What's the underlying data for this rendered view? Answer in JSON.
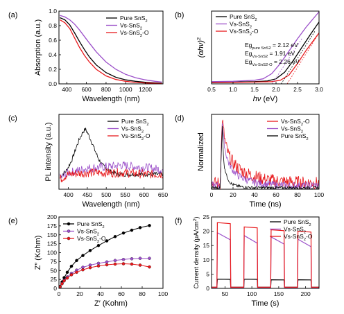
{
  "chart_data": [
    {
      "panel": "(a)",
      "type": "line",
      "xlabel": "Wavelength (nm)",
      "ylabel": "Absorption (a.u.)",
      "xlim": [
        320,
        1380
      ],
      "ylim": [
        0,
        1.0
      ],
      "xticks": [
        400,
        600,
        800,
        1000,
        1200
      ],
      "yticks": [
        0.0,
        0.2,
        0.4,
        0.6,
        0.8,
        1.0
      ],
      "legend_position": "top-right",
      "series": [
        {
          "name": "Pure SnS2",
          "color": "#000000",
          "x": [
            330,
            380,
            430,
            480,
            530,
            580,
            630,
            700,
            800,
            900,
            1000,
            1100,
            1200,
            1300,
            1370
          ],
          "y": [
            0.91,
            0.88,
            0.81,
            0.7,
            0.58,
            0.47,
            0.37,
            0.26,
            0.155,
            0.09,
            0.055,
            0.035,
            0.022,
            0.014,
            0.01
          ]
        },
        {
          "name": "Vs-SnS2",
          "color": "#9b4fc9",
          "x": [
            330,
            380,
            430,
            480,
            530,
            580,
            630,
            700,
            800,
            900,
            1000,
            1100,
            1200,
            1300,
            1370
          ],
          "y": [
            0.94,
            0.92,
            0.88,
            0.82,
            0.74,
            0.65,
            0.56,
            0.44,
            0.3,
            0.2,
            0.13,
            0.085,
            0.055,
            0.035,
            0.025
          ]
        },
        {
          "name": "Vs-SnS2-O",
          "color": "#e8191c",
          "x": [
            330,
            380,
            430,
            480,
            530,
            580,
            630,
            700,
            800,
            900,
            1000,
            1100,
            1200,
            1300,
            1370
          ],
          "y": [
            0.88,
            0.84,
            0.76,
            0.63,
            0.5,
            0.39,
            0.3,
            0.2,
            0.11,
            0.06,
            0.035,
            0.02,
            0.012,
            0.008,
            0.005
          ]
        }
      ]
    },
    {
      "panel": "(b)",
      "type": "line",
      "xlabel": "hν (eV)",
      "ylabel": "(αhν)²",
      "xlim": [
        0.5,
        3.0
      ],
      "ylim": [
        0,
        1.0
      ],
      "xticks": [
        0.5,
        1.0,
        1.5,
        2.0,
        2.5,
        3.0
      ],
      "legend_position": "top-left",
      "annotations": [
        {
          "main": "Eg",
          "sub": "pure SnS2",
          "tail": " = 2.12 eV"
        },
        {
          "main": "Eg",
          "sub": "Vs-SnS2",
          "tail": " = 1.91 eV"
        },
        {
          "main": "Eg",
          "sub": "Vs-SnS2-O",
          "tail": " = 2.26 eV"
        }
      ],
      "series": [
        {
          "name": "Pure SnS2",
          "color": "#000000",
          "x": [
            0.5,
            1.0,
            1.5,
            1.8,
            2.0,
            2.2,
            2.4,
            2.6,
            2.8,
            3.0
          ],
          "y": [
            0.02,
            0.025,
            0.03,
            0.04,
            0.07,
            0.16,
            0.32,
            0.5,
            0.68,
            0.85
          ]
        },
        {
          "name": "Vs-SnS2",
          "color": "#9b4fc9",
          "x": [
            0.5,
            1.0,
            1.5,
            1.7,
            1.9,
            2.1,
            2.3,
            2.5,
            2.7,
            3.0
          ],
          "y": [
            0.03,
            0.035,
            0.05,
            0.07,
            0.14,
            0.28,
            0.45,
            0.62,
            0.78,
            0.99
          ]
        },
        {
          "name": "Vs-SnS2-O",
          "color": "#e8191c",
          "x": [
            0.5,
            1.0,
            1.5,
            1.9,
            2.1,
            2.3,
            2.5,
            2.7,
            2.9,
            3.0
          ],
          "y": [
            0.015,
            0.02,
            0.025,
            0.03,
            0.05,
            0.12,
            0.28,
            0.46,
            0.62,
            0.7
          ]
        }
      ],
      "tangents": [
        {
          "color": "#000000",
          "x": [
            2.12,
            2.9
          ],
          "y": [
            0,
            0.72
          ]
        },
        {
          "color": "#9b4fc9",
          "x": [
            1.91,
            2.6
          ],
          "y": [
            0,
            0.62
          ]
        },
        {
          "color": "#e8191c",
          "x": [
            2.26,
            3.0
          ],
          "y": [
            0,
            0.7
          ]
        }
      ]
    },
    {
      "panel": "(c)",
      "type": "line",
      "xlabel": "Wavelength (nm)",
      "ylabel": "PL intensity (a.u.)",
      "xlim": [
        375,
        650
      ],
      "ylim": [
        0,
        1.0
      ],
      "xticks": [
        400,
        450,
        500,
        550,
        600,
        650
      ],
      "legend_position": "top-right",
      "series": [
        {
          "name": "Pure SnS2",
          "color": "#000000",
          "x": [
            380,
            395,
            410,
            420,
            430,
            440,
            445,
            450,
            460,
            470,
            480,
            490,
            500,
            510,
            520,
            530,
            550,
            600,
            650
          ],
          "y": [
            0.18,
            0.25,
            0.4,
            0.55,
            0.68,
            0.78,
            0.8,
            0.76,
            0.65,
            0.52,
            0.4,
            0.32,
            0.28,
            0.24,
            0.22,
            0.2,
            0.2,
            0.2,
            0.2
          ]
        },
        {
          "name": "Vs-SnS2",
          "color": "#9b4fc9",
          "x": [
            380,
            400,
            450,
            500,
            540,
            580,
            620,
            650
          ],
          "y": [
            0.15,
            0.22,
            0.28,
            0.3,
            0.32,
            0.3,
            0.28,
            0.26
          ]
        },
        {
          "name": "Vs-SnS2-O",
          "color": "#e8191c",
          "x": [
            380,
            400,
            450,
            500,
            550,
            600,
            650
          ],
          "y": [
            0.14,
            0.2,
            0.22,
            0.22,
            0.22,
            0.2,
            0.2
          ]
        }
      ]
    },
    {
      "panel": "(d)",
      "type": "line",
      "xlabel": "Time (ns)",
      "ylabel": "Normalized",
      "xlim": [
        0,
        100
      ],
      "ylim": [
        0,
        1.0
      ],
      "xticks": [
        0,
        20,
        40,
        60,
        80,
        100
      ],
      "legend_position": "top-right",
      "series": [
        {
          "name": "Vs-SnS2-O",
          "color": "#e8191c",
          "x": [
            0,
            8,
            10,
            11,
            13,
            16,
            20,
            25,
            30,
            40,
            50,
            60,
            70,
            80,
            90,
            100
          ],
          "y": [
            0.08,
            0.08,
            0.95,
            0.8,
            0.6,
            0.45,
            0.35,
            0.28,
            0.23,
            0.17,
            0.13,
            0.11,
            0.1,
            0.09,
            0.085,
            0.08
          ]
        },
        {
          "name": "Vs-SnS2",
          "color": "#9b4fc9",
          "x": [
            0,
            8,
            10,
            11,
            13,
            16,
            20,
            25,
            30,
            40,
            50,
            60,
            70,
            80,
            90,
            100
          ],
          "y": [
            0.05,
            0.05,
            0.9,
            0.7,
            0.5,
            0.35,
            0.25,
            0.18,
            0.14,
            0.09,
            0.07,
            0.06,
            0.05,
            0.05,
            0.05,
            0.05
          ]
        },
        {
          "name": "Pure SnS2",
          "color": "#000000",
          "x": [
            0,
            8,
            10,
            11,
            12,
            14,
            16,
            18,
            20,
            25,
            30,
            40,
            60,
            100
          ],
          "y": [
            0.02,
            0.02,
            0.85,
            0.45,
            0.3,
            0.18,
            0.12,
            0.08,
            0.06,
            0.04,
            0.03,
            0.02,
            0.02,
            0.02
          ]
        }
      ]
    },
    {
      "panel": "(e)",
      "type": "scatter",
      "xlabel": "Z′ (Kohm)",
      "ylabel": "Z″ (Kohm)",
      "xlim": [
        0,
        100
      ],
      "ylim": [
        0,
        200
      ],
      "xticks": [
        0,
        20,
        40,
        60,
        80,
        100
      ],
      "yticks": [
        0,
        25,
        50,
        75,
        100,
        125,
        150,
        175,
        200
      ],
      "legend_position": "top-left",
      "series": [
        {
          "name": "Pure SnS2",
          "color": "#000000",
          "x": [
            1,
            3,
            5,
            8,
            12,
            17,
            23,
            30,
            38,
            46,
            54,
            62,
            70,
            78,
            87
          ],
          "y": [
            5,
            18,
            30,
            45,
            62,
            78,
            92,
            106,
            120,
            133,
            145,
            155,
            163,
            170,
            176
          ]
        },
        {
          "name": "Vs-SnS2",
          "color": "#9b4fc9",
          "x": [
            1,
            3,
            5,
            8,
            12,
            17,
            23,
            30,
            38,
            46,
            54,
            62,
            70,
            78,
            87
          ],
          "y": [
            4,
            14,
            23,
            32,
            42,
            51,
            59,
            65,
            70,
            74,
            78,
            81,
            83,
            84,
            84
          ]
        },
        {
          "name": "Vs-SnS2-O",
          "color": "#e8191c",
          "x": [
            1,
            3,
            5,
            8,
            12,
            17,
            23,
            30,
            38,
            46,
            54,
            62,
            70,
            78,
            87
          ],
          "y": [
            4,
            13,
            21,
            29,
            38,
            45,
            52,
            58,
            63,
            66,
            68,
            69,
            68,
            65,
            60
          ]
        }
      ]
    },
    {
      "panel": "(f)",
      "type": "line",
      "xlabel": "Time (s)",
      "ylabel": "Current density (μA/cm²)",
      "xlim": [
        25,
        225
      ],
      "ylim": [
        0,
        25
      ],
      "xticks": [
        50,
        100,
        150,
        200
      ],
      "yticks": [
        0,
        5,
        10,
        15,
        20,
        25
      ],
      "legend_position": "top-right",
      "on_intervals": [
        [
          35,
          60
        ],
        [
          85,
          110
        ],
        [
          135,
          160
        ],
        [
          185,
          210
        ]
      ],
      "series": [
        {
          "name": "Pure SnS2",
          "color": "#000000",
          "off_value": 0.4,
          "on_values": [
            3.2,
            3.2,
            3.0,
            3.0
          ]
        },
        {
          "name": "Vs-SnS2",
          "color": "#9b4fc9",
          "off_value": 0.3,
          "on_values": [
            [
              19.5,
              17.0
            ],
            [
              18.5,
              15.8
            ],
            [
              18.0,
              15.5
            ],
            [
              17.2,
              14.6
            ]
          ]
        },
        {
          "name": "Vs-SnS2-O",
          "color": "#e8191c",
          "off_value": 0.4,
          "on_values": [
            23.0,
            21.5,
            20.5,
            20.0
          ]
        }
      ]
    }
  ],
  "labels": {
    "a": {
      "panel": "(a)",
      "ylabel": "Absorption (a.u.)",
      "xlabel": "Wavelength (nm)",
      "ticks_x": [
        "400",
        "600",
        "800",
        "1000",
        "1200"
      ],
      "ticks_y": [
        "0.0",
        "0.2",
        "0.4",
        "0.6",
        "0.8",
        "1.0"
      ],
      "legend": [
        "Pure SnS",
        "Vs-SnS",
        "Vs-SnS"
      ],
      "legend_sub": [
        "2",
        "2",
        "2"
      ],
      "legend_tail": [
        "",
        "",
        "-O"
      ]
    },
    "b": {
      "panel": "(b)",
      "ylabel": "(αhν)",
      "ylabel_sup": "2",
      "xlabel_italic": "hν",
      "xlabel_tail": " (eV)",
      "ticks_x": [
        "0.5",
        "1.0",
        "1.5",
        "2.0",
        "2.5",
        "3.0"
      ],
      "legend": [
        "Pure SnS",
        "Vs-SnS",
        "Vs-SnS"
      ],
      "legend_sub": [
        "2",
        "2",
        "2"
      ],
      "legend_tail": [
        "",
        "",
        "-O"
      ]
    },
    "c": {
      "panel": "(c)",
      "ylabel": "PL intensity (a.u.)",
      "xlabel": "Wavelength (nm)",
      "ticks_x": [
        "400",
        "450",
        "500",
        "550",
        "600",
        "650"
      ],
      "legend": [
        "Pure SnS",
        "Vs-SnS",
        "Vs-SnS"
      ],
      "legend_sub": [
        "2",
        "2",
        "2"
      ],
      "legend_tail": [
        "",
        "",
        "-O"
      ]
    },
    "d": {
      "panel": "(d)",
      "ylabel": "Normalized",
      "xlabel": "Time (ns)",
      "ticks_x": [
        "0",
        "20",
        "40",
        "60",
        "80",
        "100"
      ],
      "legend": [
        "Vs-SnS",
        "Vs-SnS",
        "Pure SnS"
      ],
      "legend_sub": [
        "2",
        "2",
        "2"
      ],
      "legend_tail": [
        "-O",
        "",
        ""
      ]
    },
    "e": {
      "panel": "(e)",
      "ylabel": "Z″ (Kohm)",
      "xlabel": "Z′ (Kohm)",
      "ticks_x": [
        "0",
        "20",
        "40",
        "60",
        "80",
        "100"
      ],
      "ticks_y": [
        "0",
        "25",
        "50",
        "75",
        "100",
        "125",
        "150",
        "175",
        "200"
      ],
      "legend": [
        "Pure SnS",
        "Vs-SnS",
        "Vs-SnS"
      ],
      "legend_sub": [
        "2",
        "2",
        "2"
      ],
      "legend_tail": [
        "",
        "",
        "-O"
      ]
    },
    "f": {
      "panel": "(f)",
      "ylabel": "Current density (μA/cm",
      "ylabel_sup": "2",
      "ylabel_tail": ")",
      "xlabel": "Time (s)",
      "ticks_x": [
        "50",
        "100",
        "150",
        "200"
      ],
      "ticks_y": [
        "0",
        "5",
        "10",
        "15",
        "20",
        "25"
      ],
      "legend": [
        "Pure SnS",
        "Vs-SnS",
        "Vs-SnS"
      ],
      "legend_sub": [
        "2",
        "2",
        "2"
      ],
      "legend_tail": [
        "",
        "",
        "-O"
      ]
    }
  }
}
